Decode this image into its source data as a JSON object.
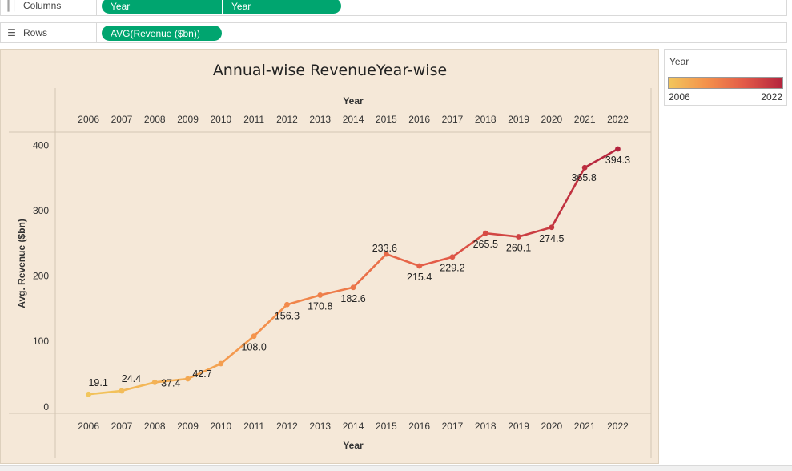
{
  "shelves": {
    "columns": {
      "label": "Columns",
      "icon": "columns-icon",
      "pills": [
        "Year",
        "Year"
      ]
    },
    "rows": {
      "label": "Rows",
      "icon": "rows-icon",
      "pills": [
        "AVG(Revenue ($bn))"
      ]
    }
  },
  "legend": {
    "title": "Year",
    "min_label": "2006",
    "max_label": "2022",
    "colors": [
      "#f2c65c",
      "#f4914b",
      "#e25a48",
      "#b4233d"
    ]
  },
  "chart_data": {
    "type": "line",
    "title": "Annual-wise RevenueYear-wise",
    "xlabel": "Year",
    "top_axis_label": "Year",
    "ylabel": "Avg. Revenue ($bn)",
    "x": [
      "2006",
      "2007",
      "2008",
      "2009",
      "2010",
      "2011",
      "2012",
      "2013",
      "2014",
      "2015",
      "2016",
      "2017",
      "2018",
      "2019",
      "2020",
      "2021",
      "2022"
    ],
    "values": [
      19.1,
      24.4,
      37.4,
      42.7,
      66.0,
      108.0,
      156.3,
      170.8,
      182.6,
      233.6,
      215.4,
      229.2,
      265.5,
      260.1,
      274.5,
      365.8,
      394.3
    ],
    "data_labels": [
      "19.1",
      "24.4",
      "37.4",
      "42.7",
      "",
      "108.0",
      "156.3",
      "170.8",
      "182.6",
      "233.6",
      "215.4",
      "229.2",
      "265.5",
      "260.1",
      "274.5",
      "365.8",
      "394.3"
    ],
    "yticks": [
      0,
      100,
      200,
      300,
      400
    ],
    "ylim": [
      -10,
      420
    ],
    "color_scale": {
      "field": "Year",
      "range": [
        "2006",
        "2022"
      ]
    },
    "grid": false
  }
}
